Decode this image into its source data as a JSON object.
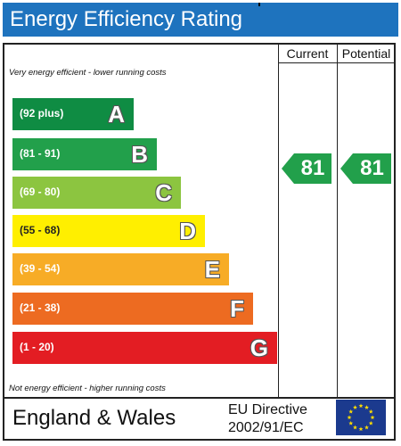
{
  "header": {
    "title": "Energy Efficiency Rating"
  },
  "columns": {
    "current": "Current",
    "potential": "Potential"
  },
  "notes": {
    "top": "Very energy efficient - lower running costs",
    "bottom": "Not energy efficient - higher running costs"
  },
  "bands": [
    {
      "range": "(92 plus)",
      "letter": "A",
      "color": "#0f8c43"
    },
    {
      "range": "(81 - 91)",
      "letter": "B",
      "color": "#22a04b"
    },
    {
      "range": "(69 - 80)",
      "letter": "C",
      "color": "#8cc540"
    },
    {
      "range": "(55 - 68)",
      "letter": "D",
      "color": "#ffef00"
    },
    {
      "range": "(39 - 54)",
      "letter": "E",
      "color": "#f7ac26"
    },
    {
      "range": "(21 - 38)",
      "letter": "F",
      "color": "#ed6b21"
    },
    {
      "range": "(1 - 20)",
      "letter": "G",
      "color": "#e31d23"
    }
  ],
  "ratings": {
    "current": {
      "value": "81",
      "color": "#22a04b"
    },
    "potential": {
      "value": "81",
      "color": "#22a04b"
    }
  },
  "footer": {
    "country": "England & Wales",
    "directive_line1": "EU Directive",
    "directive_line2": "2002/91/EC",
    "flag_icon": "eu-flag-icon",
    "flag_colors": {
      "background": "#1b3a8e",
      "stars": "#ffdd00"
    }
  }
}
